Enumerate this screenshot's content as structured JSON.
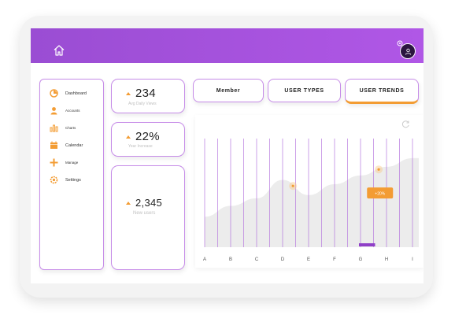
{
  "sidebar": {
    "items": [
      {
        "label": "Dashboard",
        "icon": "dashboard-icon"
      },
      {
        "label": "Accounts",
        "icon": "user-icon"
      },
      {
        "label": "Charts",
        "icon": "bar-chart-icon"
      },
      {
        "label": "Calendar",
        "icon": "calendar-icon"
      },
      {
        "label": "Manage",
        "icon": "plus-icon"
      },
      {
        "label": "Settings",
        "icon": "settings-icon"
      }
    ]
  },
  "stats": {
    "views": {
      "value": "234",
      "label": "Avg Daily Views"
    },
    "increase": {
      "value": "22%",
      "label": "Year Increase"
    },
    "new_users": {
      "value": "2,345",
      "label": "New users"
    }
  },
  "tabs": [
    {
      "label": "Member"
    },
    {
      "label": "USER TYPES"
    },
    {
      "label": "USER TRENDS",
      "active": true
    }
  ],
  "colors": {
    "accent": "#f39c33",
    "brand": "#a552df",
    "border": "#c68ce8"
  },
  "chart_data": {
    "type": "area",
    "categories": [
      "A",
      "B",
      "C",
      "D",
      "E",
      "F",
      "G",
      "H",
      "I"
    ],
    "values": [
      28,
      38,
      45,
      62,
      48,
      58,
      66,
      74,
      82
    ],
    "highlight_category": "G",
    "badge": "+20%",
    "ylim": [
      0,
      100
    ]
  }
}
